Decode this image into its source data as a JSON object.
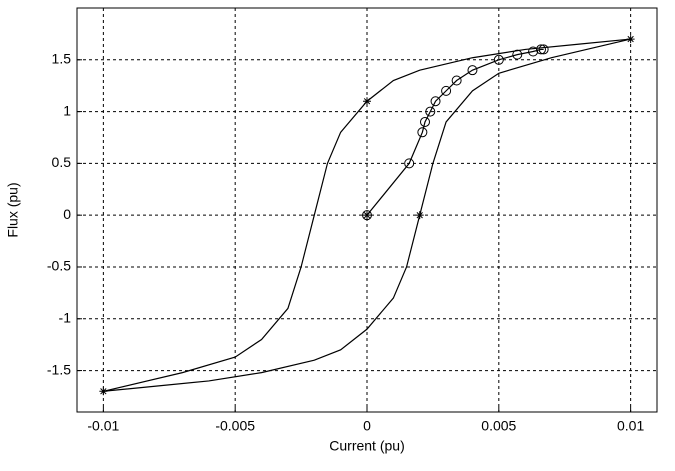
{
  "chart_data": {
    "type": "line",
    "xlabel": "Current (pu)",
    "ylabel": "Flux (pu)",
    "xlim": [
      -0.011,
      0.011
    ],
    "ylim": [
      -1.9,
      2.0
    ],
    "xticks": [
      -0.01,
      -0.005,
      0,
      0.005,
      0.01
    ],
    "yticks": [
      -1.5,
      -1,
      -0.5,
      0,
      0.5,
      1,
      1.5
    ],
    "grid": true,
    "series": [
      {
        "color": "#000000",
        "line": true,
        "marker": "none",
        "x": [
          0.01,
          0.008,
          0.006,
          0.004,
          0.002,
          0.001,
          0,
          -0.001,
          -0.0015,
          -0.002,
          -0.0025,
          -0.003,
          -0.004,
          -0.005,
          -0.007,
          -0.01
        ],
        "values": [
          1.7,
          1.65,
          1.6,
          1.52,
          1.4,
          1.3,
          1.1,
          0.8,
          0.5,
          0,
          -0.5,
          -0.9,
          -1.2,
          -1.37,
          -1.52,
          -1.7
        ]
      },
      {
        "color": "#000000",
        "line": true,
        "marker": "none",
        "x": [
          -0.01,
          -0.008,
          -0.006,
          -0.004,
          -0.002,
          -0.001,
          0,
          0.001,
          0.0015,
          0.002,
          0.0025,
          0.003,
          0.004,
          0.005,
          0.007,
          0.01
        ],
        "values": [
          -1.7,
          -1.65,
          -1.6,
          -1.52,
          -1.4,
          -1.3,
          -1.1,
          -0.8,
          -0.5,
          0,
          0.5,
          0.9,
          1.2,
          1.37,
          1.52,
          1.7
        ]
      },
      {
        "color": "#000000",
        "line": true,
        "marker": "o",
        "x": [
          0,
          0.0016,
          0.0021,
          0.0022,
          0.0024,
          0.0026,
          0.003,
          0.0034,
          0.004,
          0.005,
          0.0057,
          0.0063,
          0.0066,
          0.0067
        ],
        "values": [
          0,
          0.5,
          0.8,
          0.9,
          1.0,
          1.1,
          1.2,
          1.3,
          1.4,
          1.5,
          1.55,
          1.58,
          1.6,
          1.6
        ]
      },
      {
        "color": "#000000",
        "line": false,
        "marker": "*",
        "x": [
          0,
          0.002,
          0.01,
          -0.01,
          0
        ],
        "values": [
          1.1,
          0,
          1.7,
          -1.7,
          0
        ]
      }
    ]
  }
}
